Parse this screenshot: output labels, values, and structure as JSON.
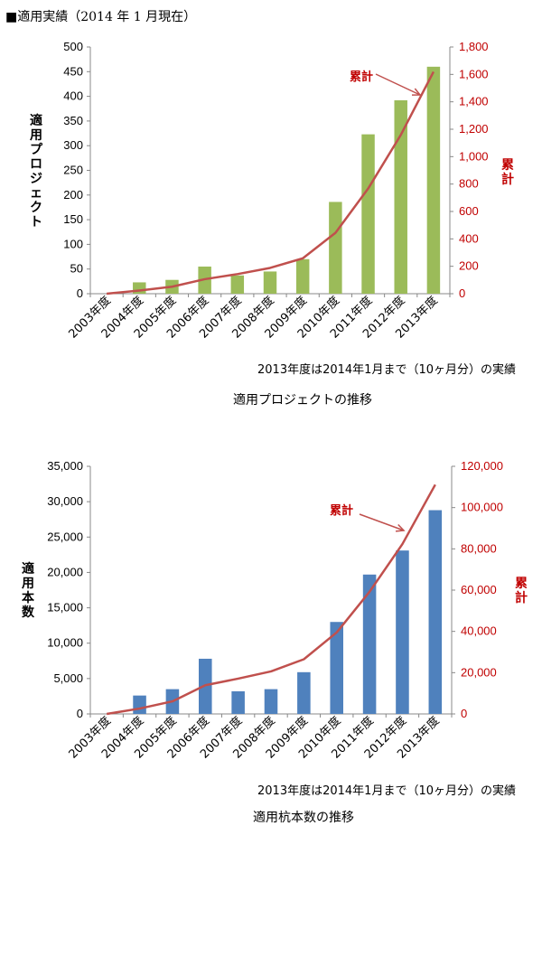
{
  "page_title": "■適用実績（2014 年 1 月現在）",
  "colors": {
    "bar1": "#9bbb59",
    "bar2": "#4f81bd",
    "line": "#c0504d",
    "red_text": "#c00000",
    "axis": "#888888"
  },
  "chart_data": [
    {
      "type": "bar",
      "categories": [
        "2003年度",
        "2004年度",
        "2005年度",
        "2006年度",
        "2007年度",
        "2008年度",
        "2009年度",
        "2010年度",
        "2011年度",
        "2012年度",
        "2013年度"
      ],
      "series": [
        {
          "values": [
            0,
            23,
            28,
            55,
            37,
            45,
            70,
            186,
            323,
            392,
            460
          ]
        },
        {
          "name": "累計",
          "axis": "right",
          "type": "line",
          "values": [
            0,
            23,
            51,
            106,
            143,
            188,
            258,
            444,
            767,
            1159,
            1619
          ]
        }
      ],
      "ylabel": "適用プロジェクト",
      "y2label": "累計",
      "ylim": [
        0,
        500
      ],
      "yticks": [
        "0",
        "50",
        "100",
        "150",
        "200",
        "250",
        "300",
        "350",
        "400",
        "450",
        "500"
      ],
      "y2lim": [
        0,
        1800
      ],
      "y2ticks": [
        "0",
        "200",
        "400",
        "600",
        "800",
        "1,000",
        "1,200",
        "1,400",
        "1,600",
        "1,800"
      ],
      "annotation": "累計",
      "note": "2013年度は2014年1月まで（10ヶ月分）の実績",
      "caption": "適用プロジェクトの推移"
    },
    {
      "type": "bar",
      "categories": [
        "2003年度",
        "2004年度",
        "2005年度",
        "2006年度",
        "2007年度",
        "2008年度",
        "2009年度",
        "2010年度",
        "2011年度",
        "2012年度",
        "2013年度"
      ],
      "series": [
        {
          "values": [
            0,
            2600,
            3500,
            7800,
            3200,
            3500,
            5900,
            13000,
            19700,
            23100,
            28800
          ]
        },
        {
          "name": "累計",
          "axis": "right",
          "type": "line",
          "values": [
            0,
            2600,
            6100,
            13900,
            17100,
            20600,
            26500,
            39500,
            59200,
            82300,
            111100
          ]
        }
      ],
      "ylabel": "適用本数",
      "y2label": "累計",
      "ylim": [
        0,
        35000
      ],
      "yticks": [
        "0",
        "5,000",
        "10,000",
        "15,000",
        "20,000",
        "25,000",
        "30,000",
        "35,000"
      ],
      "y2lim": [
        0,
        120000
      ],
      "y2ticks": [
        "0",
        "20,000",
        "40,000",
        "60,000",
        "80,000",
        "100,000",
        "120,000"
      ],
      "annotation": "累計",
      "note": "2013年度は2014年1月まで（10ヶ月分）の実績",
      "caption": "適用杭本数の推移"
    }
  ]
}
